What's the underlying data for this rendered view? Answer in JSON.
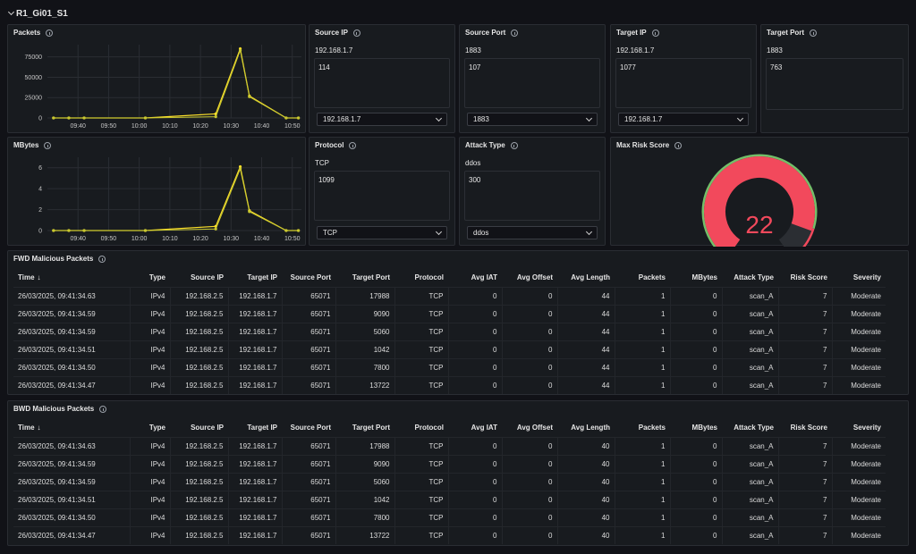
{
  "dashboard": {
    "row_title": "R1_Gi01_S1"
  },
  "packets_panel": {
    "title": "Packets"
  },
  "mbytes_panel": {
    "title": "MBytes"
  },
  "packets_chart": {
    "type": "line",
    "x_ticks": [
      "09:40",
      "09:50",
      "10:00",
      "10:10",
      "10:20",
      "10:30",
      "10:40",
      "10:50"
    ],
    "y_ticks": [
      "0",
      "25000",
      "50000",
      "75000"
    ],
    "ylim": [
      0,
      90000
    ],
    "series": [
      {
        "x": [
          "09:32",
          "09:37",
          "09:42",
          "10:02",
          "10:25",
          "10:33",
          "10:36",
          "10:48",
          "10:52"
        ],
        "y": [
          0,
          0,
          0,
          0,
          5000,
          85000,
          27000,
          0,
          0
        ]
      },
      {
        "x": [
          "09:32",
          "09:37",
          "09:42",
          "10:02",
          "10:25",
          "10:33",
          "10:36",
          "10:48",
          "10:52"
        ],
        "y": [
          0,
          0,
          0,
          0,
          1500,
          83000,
          26000,
          0,
          0
        ]
      }
    ],
    "colors": [
      "#fade2a",
      "#c8c830"
    ]
  },
  "mbytes_chart": {
    "type": "line",
    "x_ticks": [
      "09:40",
      "09:50",
      "10:00",
      "10:10",
      "10:20",
      "10:30",
      "10:40",
      "10:50"
    ],
    "y_ticks": [
      "0",
      "2",
      "4",
      "6"
    ],
    "ylim": [
      0,
      7
    ],
    "series": [
      {
        "x": [
          "09:32",
          "09:37",
          "09:42",
          "10:02",
          "10:25",
          "10:33",
          "10:36",
          "10:48",
          "10:52"
        ],
        "y": [
          0,
          0,
          0,
          0,
          0.4,
          6.1,
          1.9,
          0,
          0
        ]
      },
      {
        "x": [
          "09:32",
          "09:37",
          "09:42",
          "10:02",
          "10:25",
          "10:33",
          "10:36",
          "10:48",
          "10:52"
        ],
        "y": [
          0,
          0,
          0,
          0,
          0.15,
          5.9,
          1.8,
          0,
          0
        ]
      }
    ],
    "colors": [
      "#fade2a",
      "#c8c830"
    ]
  },
  "source_ip": {
    "title": "Source IP",
    "first": "192.168.1.7",
    "second": "114",
    "select": "192.168.1.7"
  },
  "source_port": {
    "title": "Source Port",
    "first": "1883",
    "second": "107",
    "select": "1883"
  },
  "target_ip": {
    "title": "Target IP",
    "first": "192.168.1.7",
    "second": "1077",
    "select": "192.168.1.7"
  },
  "target_port": {
    "title": "Target Port",
    "first": "1883",
    "second": "763"
  },
  "protocol": {
    "title": "Protocol",
    "first": "TCP",
    "second": "1099",
    "select": "TCP"
  },
  "attack_type": {
    "title": "Attack Type",
    "first": "ddos",
    "second": "300",
    "select": "ddos"
  },
  "risk_score": {
    "title": "Max Risk Score",
    "value": "22",
    "fraction": 0.88,
    "colors": {
      "fill": "#f2495c",
      "track": "#2b2e33",
      "threshold_ok": "#73bf69",
      "threshold_bad": "#f2495c"
    }
  },
  "fwd_table": {
    "title": "FWD Malicious Packets",
    "columns": [
      "Time",
      "Type",
      "Source IP",
      "Target IP",
      "Source Port",
      "Target Port",
      "Protocol",
      "Avg IAT",
      "Avg Offset",
      "Avg Length",
      "Packets",
      "MBytes",
      "Attack Type",
      "Risk Score",
      "Severity"
    ],
    "rows": [
      [
        "26/03/2025, 09:41:34.63",
        "IPv4",
        "192.168.2.5",
        "192.168.1.7",
        "65071",
        "17988",
        "TCP",
        "0",
        "0",
        "44",
        "1",
        "0",
        "scan_A",
        "7",
        "Moderate"
      ],
      [
        "26/03/2025, 09:41:34.59",
        "IPv4",
        "192.168.2.5",
        "192.168.1.7",
        "65071",
        "9090",
        "TCP",
        "0",
        "0",
        "44",
        "1",
        "0",
        "scan_A",
        "7",
        "Moderate"
      ],
      [
        "26/03/2025, 09:41:34.59",
        "IPv4",
        "192.168.2.5",
        "192.168.1.7",
        "65071",
        "5060",
        "TCP",
        "0",
        "0",
        "44",
        "1",
        "0",
        "scan_A",
        "7",
        "Moderate"
      ],
      [
        "26/03/2025, 09:41:34.51",
        "IPv4",
        "192.168.2.5",
        "192.168.1.7",
        "65071",
        "1042",
        "TCP",
        "0",
        "0",
        "44",
        "1",
        "0",
        "scan_A",
        "7",
        "Moderate"
      ],
      [
        "26/03/2025, 09:41:34.50",
        "IPv4",
        "192.168.2.5",
        "192.168.1.7",
        "65071",
        "7800",
        "TCP",
        "0",
        "0",
        "44",
        "1",
        "0",
        "scan_A",
        "7",
        "Moderate"
      ],
      [
        "26/03/2025, 09:41:34.47",
        "IPv4",
        "192.168.2.5",
        "192.168.1.7",
        "65071",
        "13722",
        "TCP",
        "0",
        "0",
        "44",
        "1",
        "0",
        "scan_A",
        "7",
        "Moderate"
      ]
    ]
  },
  "bwd_table": {
    "title": "BWD Malicious Packets",
    "columns": [
      "Time",
      "Type",
      "Source IP",
      "Target IP",
      "Source Port",
      "Target Port",
      "Protocol",
      "Avg IAT",
      "Avg Offset",
      "Avg Length",
      "Packets",
      "MBytes",
      "Attack Type",
      "Risk Score",
      "Severity"
    ],
    "rows": [
      [
        "26/03/2025, 09:41:34.63",
        "IPv4",
        "192.168.2.5",
        "192.168.1.7",
        "65071",
        "17988",
        "TCP",
        "0",
        "0",
        "40",
        "1",
        "0",
        "scan_A",
        "7",
        "Moderate"
      ],
      [
        "26/03/2025, 09:41:34.59",
        "IPv4",
        "192.168.2.5",
        "192.168.1.7",
        "65071",
        "9090",
        "TCP",
        "0",
        "0",
        "40",
        "1",
        "0",
        "scan_A",
        "7",
        "Moderate"
      ],
      [
        "26/03/2025, 09:41:34.59",
        "IPv4",
        "192.168.2.5",
        "192.168.1.7",
        "65071",
        "5060",
        "TCP",
        "0",
        "0",
        "40",
        "1",
        "0",
        "scan_A",
        "7",
        "Moderate"
      ],
      [
        "26/03/2025, 09:41:34.51",
        "IPv4",
        "192.168.2.5",
        "192.168.1.7",
        "65071",
        "1042",
        "TCP",
        "0",
        "0",
        "40",
        "1",
        "0",
        "scan_A",
        "7",
        "Moderate"
      ],
      [
        "26/03/2025, 09:41:34.50",
        "IPv4",
        "192.168.2.5",
        "192.168.1.7",
        "65071",
        "7800",
        "TCP",
        "0",
        "0",
        "40",
        "1",
        "0",
        "scan_A",
        "7",
        "Moderate"
      ],
      [
        "26/03/2025, 09:41:34.47",
        "IPv4",
        "192.168.2.5",
        "192.168.1.7",
        "65071",
        "13722",
        "TCP",
        "0",
        "0",
        "40",
        "1",
        "0",
        "scan_A",
        "7",
        "Moderate"
      ]
    ]
  }
}
